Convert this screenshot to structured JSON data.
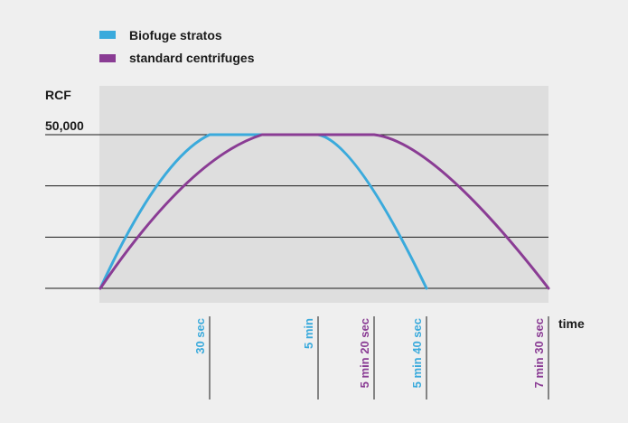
{
  "chart_data": {
    "type": "line",
    "ylabel": "RCF",
    "xlabel": "time",
    "y_tick_label": "50,000",
    "ylim": [
      0,
      50000
    ],
    "grid": "horizontal lines at 0, 1/3, 2/3 and full of max",
    "legend_position": "top-left",
    "series": [
      {
        "name": "Biofuge stratos",
        "color": "#3aaadc",
        "points": [
          {
            "t": 0,
            "rcf": 0
          },
          {
            "t": 30,
            "rcf": 50000
          },
          {
            "t": 300,
            "rcf": 50000
          },
          {
            "t": 340,
            "rcf": 0
          }
        ]
      },
      {
        "name": "standard centrifuges",
        "color": "#8a3c94",
        "points": [
          {
            "t": 0,
            "rcf": 0
          },
          {
            "t": 45,
            "rcf": 50000
          },
          {
            "t": 320,
            "rcf": 50000
          },
          {
            "t": 450,
            "rcf": 0
          }
        ]
      }
    ],
    "time_markers": [
      {
        "label": "30 sec",
        "t": 30,
        "color": "#3aaadc"
      },
      {
        "label": "5 min",
        "t": 300,
        "color": "#3aaadc"
      },
      {
        "label": "5 min 20 sec",
        "t": 320,
        "color": "#8a3c94"
      },
      {
        "label": "5 min 40 sec",
        "t": 340,
        "color": "#3aaadc"
      },
      {
        "label": "7 min 30 sec",
        "t": 450,
        "color": "#8a3c94"
      }
    ]
  }
}
